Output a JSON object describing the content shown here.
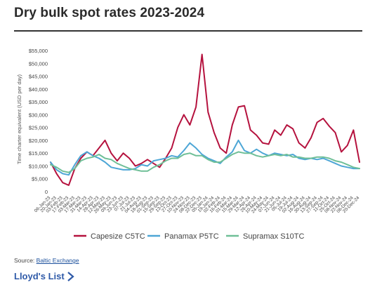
{
  "header": {
    "title": "Dry bulk spot rates 2023-2024"
  },
  "footer": {
    "source_prefix": "Source: ",
    "source_link": "Baltic Exchange",
    "brand": "Lloyd's List",
    "brand_icon": "chevron-right-icon"
  },
  "chart_data": {
    "type": "line",
    "title": "Dry bulk spot rates 2023-2024",
    "ylabel": "Time charter equivalent (USD per day)",
    "xlabel": "",
    "ylim": [
      0,
      55000
    ],
    "yticks": [
      0,
      5000,
      10000,
      15000,
      20000,
      25000,
      30000,
      35000,
      40000,
      45000,
      50000,
      55000
    ],
    "ytick_labels": [
      "0",
      "$5,000",
      "$10,000",
      "$15,000",
      "$20,000",
      "$25,000",
      "$30,000",
      "$35,000",
      "$40,000",
      "$45,000",
      "$50,000",
      "$55,000"
    ],
    "x_tick_labels": [
      "06-Jan-23",
      "20-Jan-23",
      "03-Feb-23",
      "17-Feb-23",
      "03-Mar-23",
      "17-Mar-23",
      "31-Mar-23",
      "14-Apr-23",
      "28-Apr-23",
      "12-May-23",
      "26-May-23",
      "09-Jun-23",
      "23-Jun-23",
      "07-Jul-23",
      "21-Jul-23",
      "04-Aug-23",
      "18-Aug-23",
      "01-Sep-23",
      "15-Sep-23",
      "29-Sep-23",
      "13-Oct-23",
      "27-Oct-23",
      "10-Nov-23",
      "24-Nov-23",
      "08-Dec-23",
      "22-Dec-23",
      "05-Jan-24",
      "19-Jan-24",
      "02-Feb-24",
      "16-Feb-24",
      "01-Mar-24",
      "15-Mar-24",
      "29-Mar-24",
      "12-Apr-24",
      "26-Apr-24",
      "10-May-24",
      "24-May-24",
      "07-Jun-24",
      "21-Jun-24",
      "05-Jul-24",
      "19-Jul-24",
      "02-Aug-24",
      "16-Aug-24",
      "30-Aug-24",
      "13-Sep-24",
      "27-Sep-24",
      "11-Oct-24",
      "25-Oct-24",
      "08-Nov-24",
      "22-Nov-24",
      "06-Dec-24",
      "20-Dec-24"
    ],
    "x_tick_labels_shown": [
      "06-Jan-23",
      "20-Jan-23",
      "03-Feb-23",
      "17-Feb-23",
      "03-Mar-23",
      "17-Mar-23",
      "31-Mar-23",
      "14-Apr-23",
      "28-Apr-23",
      "12-May-23",
      "26-May-23",
      "09-Jun-23",
      "23-Jun-23",
      "07-Jul-23",
      "21-Jul-23",
      "04-Aug-23",
      "18-Aug-23",
      "01-Sep-23",
      "15-Sep-23",
      "29-Sep-23",
      "13-Oct-23",
      "27-Oct-23",
      "10-Nov-23",
      "24-Nov-23",
      "08-Dec-23",
      "22-Dec-23",
      "05-Jan-24",
      "19-Jan-24",
      "02-Feb-24",
      "16-Feb-24",
      "01-Mar-24",
      "15-Mar-24",
      "29-Mar-24",
      "12-Apr-24",
      "26-Apr-24",
      "10-May-24",
      "24-May-24",
      "07-Jun-24",
      "21-Jun-24",
      "05-Jul-24",
      "19-Jul-24",
      "02-Aug-24",
      "16-Aug-24",
      "30-Aug-24",
      "13-Sep-24",
      "27-Sep-24",
      "11-Oct-24",
      "25-Oct-24",
      "08-Nov-24",
      "22-Nov-24",
      "06-Dec-24",
      "20-Dec-24"
    ],
    "x": [
      "06-Jan-23",
      "20-Jan-23",
      "03-Feb-23",
      "17-Feb-23",
      "03-Mar-23",
      "17-Mar-23",
      "31-Mar-23",
      "14-Apr-23",
      "28-Apr-23",
      "12-May-23",
      "26-May-23",
      "09-Jun-23",
      "23-Jun-23",
      "07-Jul-23",
      "21-Jul-23",
      "04-Aug-23",
      "18-Aug-23",
      "01-Sep-23",
      "15-Sep-23",
      "29-Sep-23",
      "13-Oct-23",
      "27-Oct-23",
      "10-Nov-23",
      "24-Nov-23",
      "08-Dec-23",
      "22-Dec-23",
      "05-Jan-24",
      "19-Jan-24",
      "02-Feb-24",
      "16-Feb-24",
      "01-Mar-24",
      "15-Mar-24",
      "29-Mar-24",
      "12-Apr-24",
      "26-Apr-24",
      "10-May-24",
      "24-May-24",
      "07-Jun-24",
      "21-Jun-24",
      "05-Jul-24",
      "19-Jul-24",
      "02-Aug-24",
      "16-Aug-24",
      "30-Aug-24",
      "13-Sep-24",
      "27-Sep-24",
      "11-Oct-24",
      "25-Oct-24",
      "08-Nov-24",
      "22-Nov-24",
      "06-Dec-24",
      "20-Dec-24"
    ],
    "grid": false,
    "legend_position": "bottom",
    "series": [
      {
        "name": "Capesize C5TC",
        "color": "#b5123e",
        "values": [
          11500,
          7000,
          3500,
          2500,
          9000,
          13000,
          15500,
          14000,
          17000,
          20000,
          15000,
          12000,
          15000,
          13000,
          10000,
          11000,
          12500,
          11000,
          9500,
          13000,
          17000,
          25000,
          30000,
          26000,
          33000,
          53500,
          31000,
          23000,
          17000,
          15000,
          26000,
          33000,
          33500,
          24000,
          22000,
          19000,
          18500,
          24000,
          22000,
          26000,
          24500,
          19000,
          17000,
          21000,
          27000,
          28500,
          25500,
          23000,
          15500,
          18000,
          24000,
          11500
        ]
      },
      {
        "name": "Panamax P5TC",
        "color": "#4da6d6",
        "values": [
          11500,
          8500,
          7000,
          6500,
          10500,
          14000,
          15500,
          14000,
          13000,
          11500,
          9500,
          9000,
          8500,
          8500,
          9000,
          10500,
          10000,
          12000,
          12500,
          13000,
          14000,
          13500,
          16000,
          19000,
          17000,
          14500,
          13000,
          12000,
          11000,
          13500,
          15500,
          20000,
          16000,
          15000,
          16500,
          15000,
          14000,
          15000,
          14500,
          14000,
          14500,
          13000,
          12500,
          13000,
          12500,
          13000,
          12000,
          11000,
          10000,
          9500,
          9000,
          9000
        ]
      },
      {
        "name": "Supramax S10TC",
        "color": "#6fbf97",
        "values": [
          10500,
          9500,
          8000,
          7500,
          9000,
          12000,
          13000,
          13500,
          14500,
          13000,
          12500,
          11000,
          10000,
          9000,
          8500,
          8000,
          8000,
          9500,
          10500,
          12000,
          13000,
          13000,
          14500,
          15000,
          14000,
          14000,
          12500,
          11500,
          11500,
          13000,
          14500,
          15500,
          15000,
          15000,
          14000,
          13500,
          14000,
          14500,
          14000,
          14500,
          13500,
          13500,
          13000,
          13000,
          13500,
          13500,
          13000,
          12000,
          11500,
          10500,
          9500,
          9000
        ]
      }
    ]
  }
}
